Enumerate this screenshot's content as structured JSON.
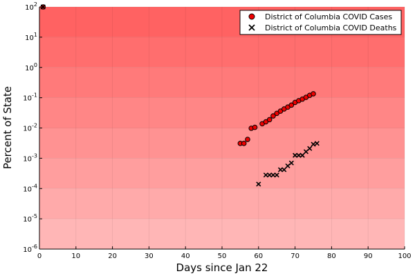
{
  "chart_data": {
    "type": "scatter",
    "xlabel": "Days since Jan 22",
    "ylabel": "Percent of State",
    "xlim": [
      0,
      100
    ],
    "ylim": [
      1e-06,
      100
    ],
    "yscale": "log",
    "x_ticks": [
      0,
      10,
      20,
      30,
      40,
      50,
      60,
      70,
      80,
      90,
      100
    ],
    "y_ticks": [
      {
        "value": 1e-06,
        "base": "10",
        "exp": "-6"
      },
      {
        "value": 1e-05,
        "base": "10",
        "exp": "-5"
      },
      {
        "value": 0.0001,
        "base": "10",
        "exp": "-4"
      },
      {
        "value": 0.001,
        "base": "10",
        "exp": "-3"
      },
      {
        "value": 0.01,
        "base": "10",
        "exp": "-2"
      },
      {
        "value": 0.1,
        "base": "10",
        "exp": "-1"
      },
      {
        "value": 1,
        "base": "10",
        "exp": "0"
      },
      {
        "value": 10,
        "base": "10",
        "exp": "1"
      },
      {
        "value": 100,
        "base": "10",
        "exp": "2"
      }
    ],
    "grid": true,
    "legend_position": "top-right",
    "background": {
      "top_color": "#ff6262",
      "bottom_color": "#ffb6b6",
      "bands": 8
    },
    "series": [
      {
        "name": "District of Columbia COVID Cases",
        "marker": "circle",
        "color": "#ee0000",
        "points": [
          [
            1,
            100
          ],
          [
            55,
            0.0031
          ],
          [
            56,
            0.0031
          ],
          [
            57,
            0.0042
          ],
          [
            58,
            0.0098
          ],
          [
            59,
            0.0105
          ],
          [
            61,
            0.0138
          ],
          [
            62,
            0.016
          ],
          [
            63,
            0.0188
          ],
          [
            64,
            0.025
          ],
          [
            65,
            0.0305
          ],
          [
            66,
            0.036
          ],
          [
            67,
            0.0425
          ],
          [
            68,
            0.049
          ],
          [
            69,
            0.057
          ],
          [
            70,
            0.07
          ],
          [
            71,
            0.08
          ],
          [
            72,
            0.09
          ],
          [
            73,
            0.103
          ],
          [
            74,
            0.12
          ],
          [
            75,
            0.135
          ]
        ]
      },
      {
        "name": "District of Columbia COVID Deaths",
        "marker": "cross",
        "color": "#000000",
        "points": [
          [
            1,
            100
          ],
          [
            60,
            0.00014
          ],
          [
            62,
            0.00028
          ],
          [
            63,
            0.00028
          ],
          [
            64,
            0.00028
          ],
          [
            65,
            0.00028
          ],
          [
            66,
            0.00042
          ],
          [
            67,
            0.00042
          ],
          [
            68,
            0.00056
          ],
          [
            69,
            0.0007
          ],
          [
            70,
            0.00125
          ],
          [
            71,
            0.00125
          ],
          [
            72,
            0.00125
          ],
          [
            73,
            0.00165
          ],
          [
            74,
            0.0021
          ],
          [
            75,
            0.0029
          ],
          [
            76,
            0.0031
          ]
        ]
      }
    ]
  }
}
